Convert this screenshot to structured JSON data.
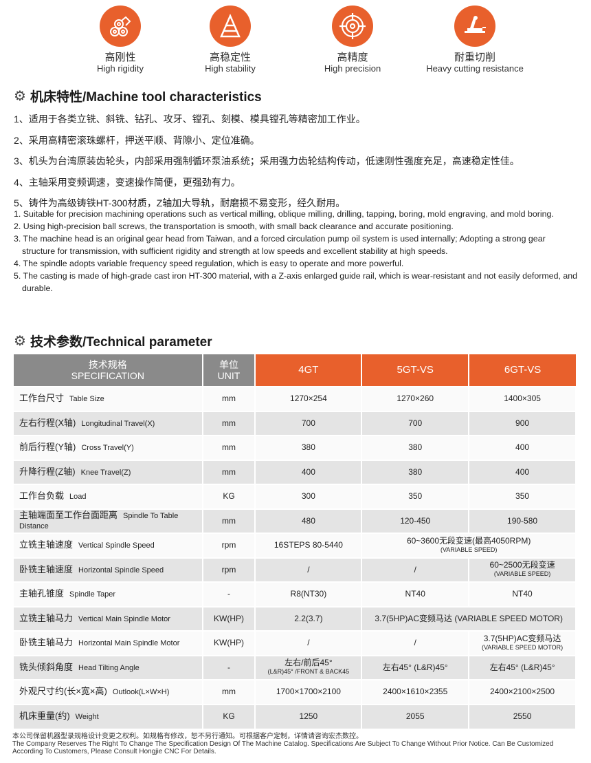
{
  "features": [
    {
      "icon": "logs-icon",
      "cn": "高刚性",
      "en": "High rigidity"
    },
    {
      "icon": "pyramid-icon",
      "cn": "高稳定性",
      "en": "High stability"
    },
    {
      "icon": "target-icon",
      "cn": "高精度",
      "en": "High precision"
    },
    {
      "icon": "cutting-machine-icon",
      "cn": "耐重切削",
      "en": "Heavy cutting resistance"
    }
  ],
  "characteristics": {
    "title": "机床特性/Machine tool characteristics",
    "cn": [
      "1、适用于各类立铣、斜铣、钻孔、攻牙、镗孔、刻模、模具镗孔等精密加工作业。",
      "2、采用高精密滚珠螺杆，押送平顺、背隙小、定位准确。",
      "3、机头为台湾原装齿轮头，内部采用强制循环泵油系统；采用强力齿轮结构传动，低速刚性强度充足，高速稳定性佳。",
      "4、主轴采用变频调速，变速操作简便，更强劲有力。",
      "5、铸件为高级铸铁HT-300材质，Z轴加大导轨，耐磨损不易变形，经久耐用。"
    ],
    "en": [
      "1. Suitable for precision machining operations such as vertical milling, oblique milling, drilling, tapping, boring, mold engraving, and mold boring.",
      "2. Using high-precision ball screws, the transportation is smooth, with small back clearance and accurate positioning.",
      "3. The machine head is an original gear head from Taiwan, and a forced circulation pump oil system is used internally; Adopting a strong gear structure for transmission, with sufficient rigidity and strength at low speeds and excellent stability at high speeds.",
      "4. The spindle adopts variable frequency speed regulation, which is easy to operate and more powerful.",
      "5. The casting is made of high-grade cast iron HT-300 material, with a Z-axis enlarged guide rail, which is wear-resistant and not easily deformed, and durable."
    ]
  },
  "params": {
    "title": "技术参数/Technical parameter",
    "header": {
      "spec_cn": "技术规格",
      "spec_en": "SPECIFICATION",
      "unit_cn": "单位",
      "unit_en": "UNIT",
      "models": [
        "4GT",
        "5GT-VS",
        "6GT-VS"
      ]
    },
    "rows": [
      {
        "cn": "工作台尺寸",
        "en": "Table Size",
        "unit": "mm",
        "v": [
          "1270×254",
          "1270×260",
          "1400×305"
        ]
      },
      {
        "cn": "左右行程(X轴)",
        "en": "Longitudinal Travel(X)",
        "unit": "mm",
        "v": [
          "700",
          "700",
          "900"
        ]
      },
      {
        "cn": "前后行程(Y轴)",
        "en": "Cross Travel(Y)",
        "unit": "mm",
        "v": [
          "380",
          "380",
          "400"
        ]
      },
      {
        "cn": "升降行程(Z轴)",
        "en": "Knee Travel(Z)",
        "unit": "mm",
        "v": [
          "400",
          "380",
          "400"
        ]
      },
      {
        "cn": "工作台负载",
        "en": "Load",
        "unit": "KG",
        "v": [
          "300",
          "350",
          "350"
        ]
      },
      {
        "cn": "主轴端面至工作台面距离",
        "en": "Spindle To Table Distance",
        "unit": "mm",
        "v": [
          "480",
          "120-450",
          "190-580"
        ]
      },
      {
        "cn": "立铣主轴速度",
        "en": "Vertical Spindle Speed",
        "unit": "rpm",
        "v": [
          "16STEPS 80-5440",
          "60~3600无段变速(最高4050RPM)"
        ],
        "sub": [
          "",
          "(VARIABLE SPEED)"
        ]
      },
      {
        "cn": "卧铣主轴速度",
        "en": "Horizontal Spindle Speed",
        "unit": "rpm",
        "v": [
          "/",
          "/",
          "60~2500无段变速"
        ],
        "sub": [
          "",
          "",
          "(VARIABLE SPEED)"
        ]
      },
      {
        "cn": "主轴孔锥度",
        "en": "Spindle Taper",
        "unit": "-",
        "v": [
          "R8(NT30)",
          "NT40",
          "NT40"
        ]
      },
      {
        "cn": "立铣主轴马力",
        "en": "Vertical Main Spindle Motor",
        "unit": "KW(HP)",
        "v": [
          "2.2(3.7)",
          "3.7(5HP)AC变频马达  (VARIABLE SPEED MOTOR)"
        ]
      },
      {
        "cn": "卧铣主轴马力",
        "en": "Horizontal Main Spindle Motor",
        "unit": "KW(HP)",
        "v": [
          "/",
          "/",
          "3.7(5HP)AC变频马达"
        ],
        "sub": [
          "",
          "",
          "(VARIABLE SPEED MOTOR)"
        ]
      },
      {
        "cn": "铣头倾斜角度",
        "en": "Head Tilting Angle",
        "unit": "-",
        "v": [
          "左右/前后45°",
          "左右45°  (L&R)45°",
          "左右45°  (L&R)45°"
        ],
        "sub": [
          "(L&R)45° /FRONT & BACK45",
          "",
          ""
        ]
      },
      {
        "cn": "外观尺寸约(长×宽×高)",
        "en": "Outlook(L×W×H)",
        "unit": "mm",
        "v": [
          "1700×1700×2100",
          "2400×1610×2355",
          "2400×2100×2500"
        ]
      },
      {
        "cn": "机床重量(约)",
        "en": "Weight",
        "unit": "KG",
        "v": [
          "1250",
          "2055",
          "2550"
        ]
      }
    ]
  },
  "footer": {
    "cn": "本公司保留机器型录规格设计变更之权利。如规格有修改，恕不另行通知。可根据客户定制，详情请咨询宏杰数控。",
    "en": "The Company Reserves The Right To Change The Specification Design Of The Machine Catalog. Specifications Are Subject To Change Without Prior Notice. Can Be Customized According To Customers, Please Consult Hongjie CNC For Details."
  }
}
